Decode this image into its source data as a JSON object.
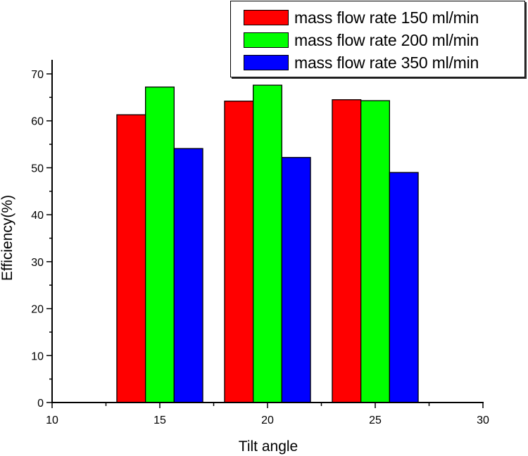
{
  "chart_data": {
    "type": "bar",
    "title": "",
    "xlabel": "Tilt angle",
    "ylabel": "Efficiency(%)",
    "xlim": [
      10,
      30
    ],
    "ylim": [
      0,
      72
    ],
    "x_ticks": [
      10,
      15,
      20,
      25,
      30
    ],
    "y_ticks": [
      0,
      10,
      20,
      30,
      40,
      50,
      60,
      70
    ],
    "x_minor_ticks": [
      12.5,
      17.5,
      22.5,
      27.5
    ],
    "y_minor_ticks": [
      5,
      15,
      25,
      35,
      45,
      55,
      65
    ],
    "categories": [
      15,
      20,
      25
    ],
    "series": [
      {
        "name": "mass flow rate 150 ml/min",
        "color": "#ff0000",
        "values": [
          61.3,
          64.2,
          64.5
        ]
      },
      {
        "name": "mass flow rate 200 ml/min",
        "color": "#00ff00",
        "values": [
          67.2,
          67.6,
          64.3
        ]
      },
      {
        "name": "mass flow rate 350 ml/min",
        "color": "#0000ff",
        "values": [
          54.1,
          52.2,
          49.0
        ]
      }
    ],
    "grid": false,
    "legend_position": "top-right",
    "bar_width_units": 1.33
  },
  "legend": {
    "items": [
      {
        "label": "mass flow rate 150 ml/min",
        "color": "#ff0000"
      },
      {
        "label": "mass flow rate 200 ml/min",
        "color": "#00ff00"
      },
      {
        "label": "mass flow rate 350 ml/min",
        "color": "#0000ff"
      }
    ]
  }
}
